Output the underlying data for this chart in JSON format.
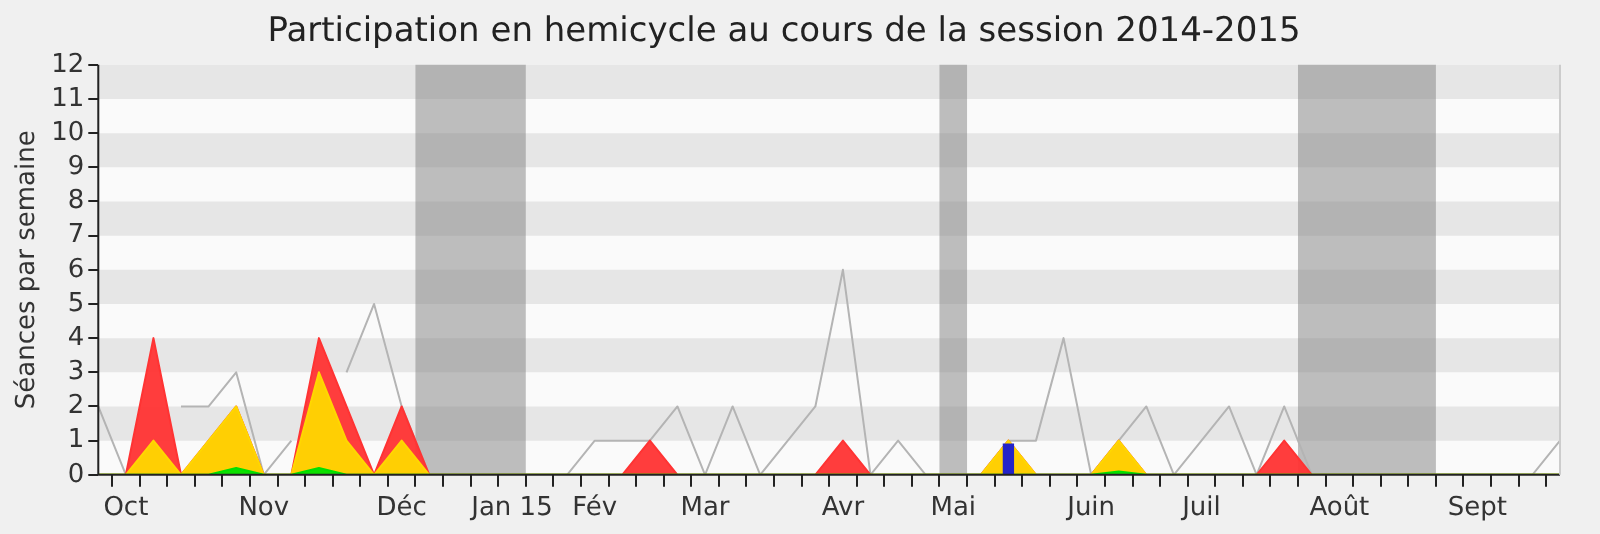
{
  "chart_data": {
    "type": "area",
    "title": "Participation en hemicycle au cours de la session 2014-2015",
    "ylabel": "Séances par semaine",
    "categories": [
      null,
      "Oct",
      null,
      null,
      null,
      null,
      "Nov",
      null,
      null,
      null,
      null,
      "Déc",
      null,
      null,
      null,
      "Jan 15",
      null,
      null,
      "Fév",
      null,
      null,
      null,
      "Mar",
      null,
      null,
      null,
      null,
      "Avr",
      null,
      null,
      null,
      "Mai",
      null,
      null,
      null,
      null,
      "Juin",
      null,
      null,
      null,
      "Juil",
      null,
      null,
      null,
      null,
      "Août",
      null,
      null,
      null,
      null,
      "Sept",
      null,
      null,
      null
    ],
    "ylim": [
      0,
      12
    ],
    "yticks": [
      0,
      1,
      2,
      3,
      4,
      5,
      6,
      7,
      8,
      9,
      10,
      11,
      12
    ],
    "legend": false,
    "marker": "none",
    "series": [
      {
        "type": "line",
        "color": "#b4b4b4",
        "values": [
          2,
          0,
          null,
          2,
          2,
          3,
          0,
          1,
          null,
          3,
          5,
          2,
          0,
          0,
          0,
          0,
          0,
          0,
          1,
          1,
          1,
          2,
          0,
          2,
          0,
          1,
          2,
          6,
          0,
          1,
          0,
          0,
          0,
          1,
          1,
          4,
          0,
          1,
          2,
          0,
          1,
          2,
          0,
          2,
          0,
          0,
          0,
          0,
          0,
          0,
          0,
          0,
          0,
          1
        ]
      },
      {
        "color": "#ff3333",
        "values": [
          0,
          0,
          4,
          0,
          1,
          2,
          0,
          0,
          4,
          2,
          0,
          2,
          0,
          0,
          0,
          0,
          0,
          0,
          0,
          0,
          1,
          0,
          0,
          0,
          0,
          0,
          0,
          1,
          0,
          0,
          0,
          0,
          0,
          1,
          0,
          0,
          0,
          1,
          0,
          0,
          0,
          0,
          0,
          1,
          0,
          0,
          0,
          0,
          0,
          0,
          0,
          0,
          0,
          0
        ]
      },
      {
        "color": "#ffd700",
        "values": [
          0,
          0,
          1,
          0,
          1,
          2,
          0,
          0,
          3,
          1,
          0,
          1,
          0,
          0,
          0,
          0,
          0,
          0,
          0,
          0,
          0,
          0,
          0,
          0,
          0,
          0,
          0,
          0,
          0,
          0,
          0,
          0,
          0,
          1,
          0,
          0,
          0,
          1,
          0,
          0,
          0,
          0,
          0,
          0,
          0,
          0,
          0,
          0,
          0,
          0,
          0,
          0,
          0,
          0
        ]
      },
      {
        "color": "#00e000",
        "values": [
          0,
          0,
          0,
          0,
          0,
          0.2,
          0,
          0,
          0.2,
          0,
          0,
          0,
          0,
          0,
          0,
          0,
          0,
          0,
          0,
          0,
          0,
          0,
          0,
          0,
          0,
          0,
          0,
          0,
          0,
          0,
          0,
          0,
          0,
          0,
          0,
          0,
          0,
          0.1,
          0,
          0,
          0,
          0,
          0,
          0,
          0,
          0,
          0,
          0,
          0,
          0,
          0,
          0,
          0,
          0
        ]
      },
      {
        "type": "bar",
        "color": "#2424c8",
        "values": [
          null,
          null,
          null,
          null,
          null,
          null,
          null,
          null,
          null,
          null,
          null,
          null,
          null,
          null,
          null,
          null,
          null,
          null,
          null,
          null,
          null,
          null,
          null,
          null,
          null,
          null,
          null,
          null,
          null,
          null,
          null,
          null,
          null,
          0.9,
          null,
          null,
          null,
          null,
          null,
          null,
          null,
          null,
          null,
          null,
          null,
          null,
          null,
          null,
          null,
          null,
          null,
          null,
          null,
          null
        ]
      }
    ]
  }
}
